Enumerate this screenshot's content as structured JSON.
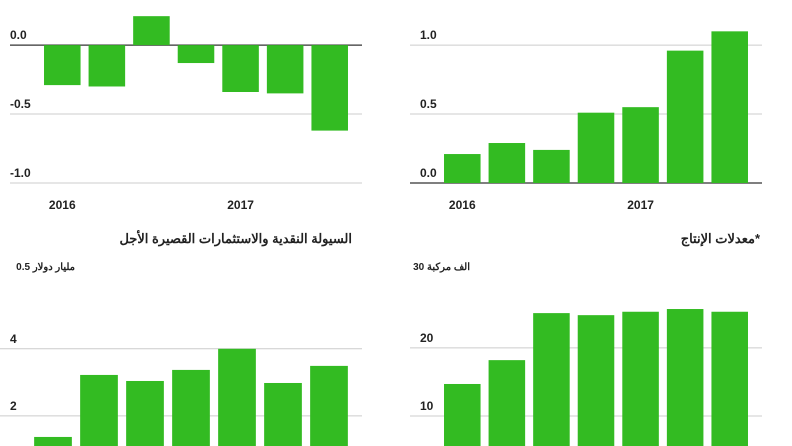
{
  "chart_data": [
    {
      "type": "bar",
      "categories": [
        "2016",
        null,
        null,
        null,
        "2017",
        null,
        null
      ],
      "values": [
        -0.29,
        -0.3,
        0.21,
        -0.13,
        -0.34,
        -0.35,
        -0.62
      ],
      "color": "#33bb22",
      "ylim": [
        -1.0,
        0.32
      ],
      "yticks": [
        {
          "value": -1.0,
          "label": "-1.0"
        },
        -0.5,
        {
          "value": 0,
          "label": "0.0"
        }
      ],
      "grid": true
    },
    {
      "type": "bar",
      "categories": [
        "2016",
        null,
        null,
        null,
        "2017",
        null,
        null
      ],
      "values": [
        0.21,
        0.29,
        0.24,
        0.51,
        0.55,
        0.96,
        1.1
      ],
      "color": "#33bb22",
      "ylim": [
        0,
        1.32
      ],
      "yticks": [
        {
          "value": 0,
          "label": "0.0"
        },
        0.5,
        {
          "value": 1,
          "label": "1.0"
        }
      ],
      "grid": true
    },
    {
      "type": "bar",
      "title": "السيولة النقدية والاستثمارات القصيرة الأجل",
      "ylabel": "0.5 مليار دولار",
      "values": [
        1.37,
        3.22,
        3.04,
        3.37,
        4.0,
        2.98,
        3.49
      ],
      "color": "#33bb22",
      "ylim": [
        1.1,
        6.5
      ],
      "yticks": [
        2,
        4
      ],
      "grid": true
    },
    {
      "type": "bar",
      "title": "معدلات الإنتاج*",
      "ylabel": "30 الف مركبة",
      "values": [
        14.7,
        18.2,
        25.1,
        24.8,
        25.3,
        25.7,
        25.3
      ],
      "color": "#33bb22",
      "ylim": [
        5.6,
        32.6
      ],
      "yticks": [
        10,
        20
      ],
      "grid": true
    }
  ]
}
